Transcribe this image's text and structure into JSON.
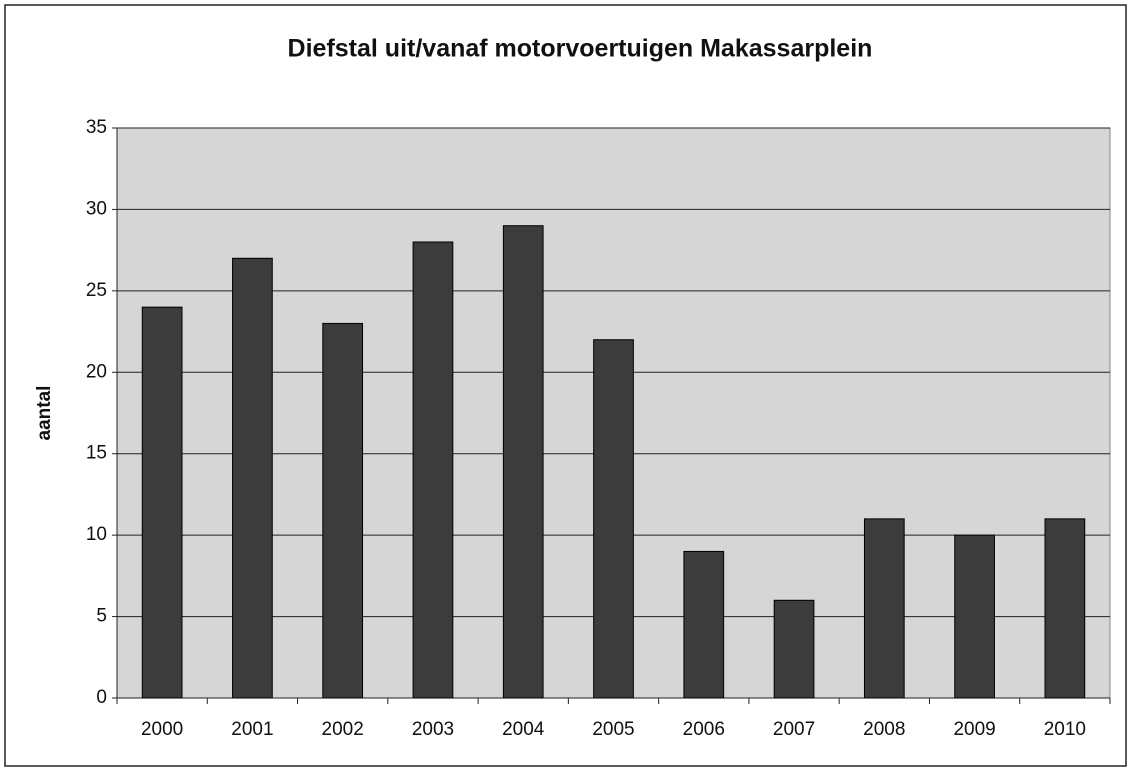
{
  "chart_data": {
    "type": "bar",
    "title": "Diefstal uit/vanaf motorvoertuigen Makassarplein",
    "y_label": "aantal",
    "categories": [
      "2000",
      "2001",
      "2002",
      "2003",
      "2004",
      "2005",
      "2006",
      "2007",
      "2008",
      "2009",
      "2010"
    ],
    "values": [
      24,
      27,
      23,
      28,
      29,
      22,
      9,
      6,
      11,
      10,
      11
    ],
    "color": "#3c3c3c",
    "ylim": [
      0,
      35
    ],
    "yticks": [
      0,
      5,
      10,
      15,
      20,
      25,
      30,
      35
    ],
    "grid": true
  }
}
